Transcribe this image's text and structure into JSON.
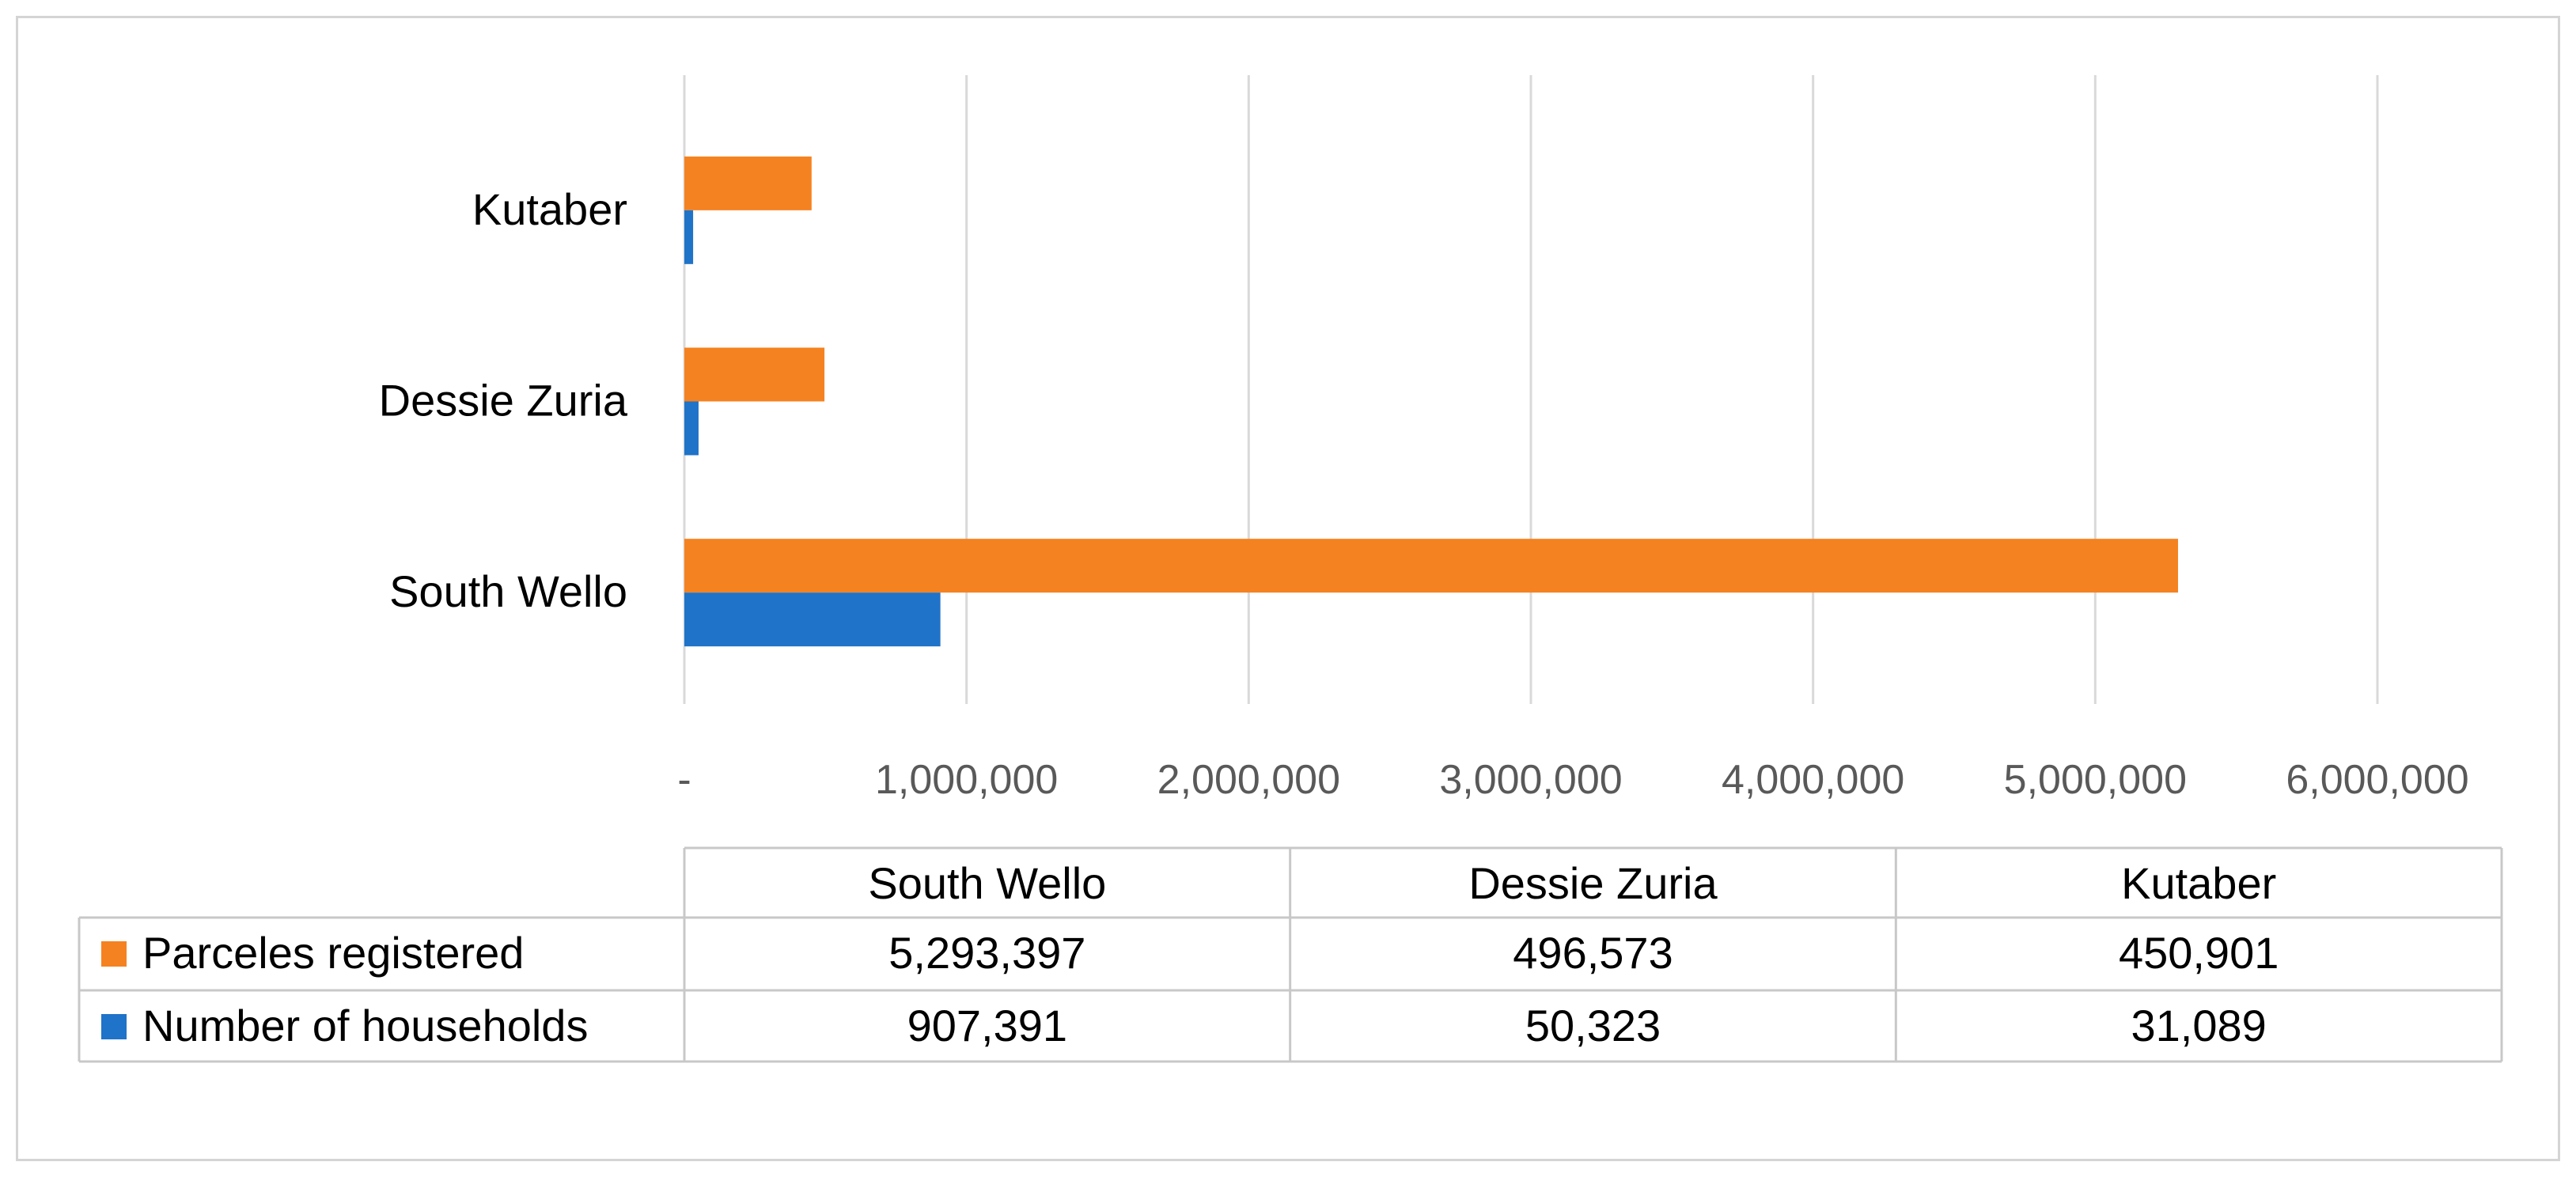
{
  "chart_data": {
    "type": "bar",
    "orientation": "horizontal",
    "categories": [
      "South Wello",
      "Dessie Zuria",
      "Kutaber"
    ],
    "series": [
      {
        "name": "Parceles registered",
        "values": [
          5293397,
          496573,
          450901
        ],
        "display": [
          "5,293,397",
          "496,573",
          "450,901"
        ],
        "color": "#f58220"
      },
      {
        "name": "Number of households",
        "values": [
          907391,
          50323,
          31089
        ],
        "display": [
          "907,391",
          "50,323",
          "31,089"
        ],
        "color": "#1f73c8"
      }
    ],
    "xlim": [
      0,
      6000000
    ],
    "x_ticks": [
      0,
      1000000,
      2000000,
      3000000,
      4000000,
      5000000,
      6000000
    ],
    "x_tick_labels": [
      "-",
      "1,000,000",
      "2,000,000",
      "3,000,000",
      "4,000,000",
      "5,000,000",
      "6,000,000"
    ],
    "grid": "vertical",
    "legend": "data-table-below",
    "title": "",
    "xlabel": "",
    "ylabel": ""
  }
}
